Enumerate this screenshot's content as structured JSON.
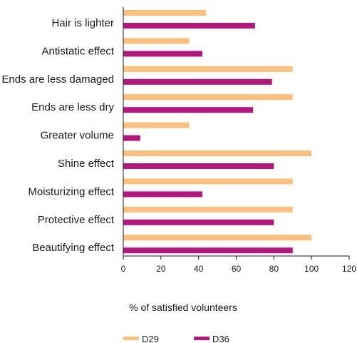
{
  "chart_data": {
    "type": "bar",
    "orientation": "horizontal",
    "categories": [
      "Hair is lighter",
      "Antistatic effect",
      "Ends are less damaged",
      "Ends are less dry",
      "Greater volume",
      "Shine effect",
      "Moisturizing effect",
      "Protective effect",
      "Beautifying effect"
    ],
    "series": [
      {
        "name": "D29",
        "color": "#FDBF7C",
        "values": [
          44,
          35,
          90,
          90,
          35,
          100,
          90,
          90,
          100
        ]
      },
      {
        "name": "D36",
        "color": "#B5157D",
        "values": [
          70,
          42,
          79,
          69,
          9,
          80,
          42,
          80,
          90
        ]
      }
    ],
    "xlabel": "% of satisfied volunteers",
    "ylabel": "",
    "xlim": [
      0,
      120
    ],
    "xticks": [
      "0",
      "20",
      "40",
      "60",
      "80",
      "100",
      "120"
    ],
    "grid": false,
    "legend_position": "bottom"
  }
}
